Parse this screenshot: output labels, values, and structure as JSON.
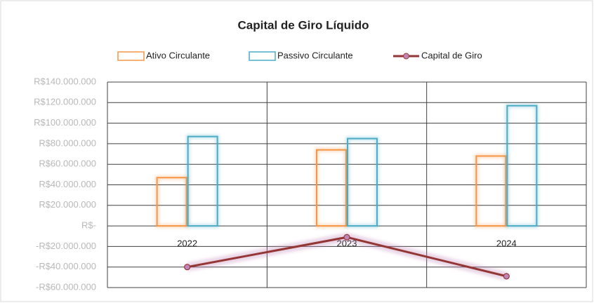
{
  "chart_data": {
    "type": "bar_line",
    "title": "Capital de Giro Líquido",
    "categories": [
      "2022",
      "2023",
      "2024"
    ],
    "series": [
      {
        "name": "Ativo Circulante",
        "type": "bar",
        "color": "#f79646",
        "values": [
          47000000,
          74000000,
          68000000
        ]
      },
      {
        "name": "Passivo Circulante",
        "type": "bar",
        "color": "#4bacc6",
        "values": [
          87000000,
          85000000,
          117000000
        ]
      },
      {
        "name": "Capital de Giro",
        "type": "line",
        "color": "#943634",
        "marker_color": "#c084b8",
        "values": [
          -40000000,
          -11000000,
          -49000000
        ]
      }
    ],
    "ylim": [
      -60000000,
      140000000
    ],
    "yticks": [
      {
        "value": -60000000,
        "label": "-R$60.000.000"
      },
      {
        "value": -40000000,
        "label": "-R$40.000.000"
      },
      {
        "value": -20000000,
        "label": "-R$20.000.000"
      },
      {
        "value": 0,
        "label": "R$-"
      },
      {
        "value": 20000000,
        "label": "R$20.000.000"
      },
      {
        "value": 40000000,
        "label": "R$40.000.000"
      },
      {
        "value": 60000000,
        "label": "R$60.000.000"
      },
      {
        "value": 80000000,
        "label": "R$80.000.000"
      },
      {
        "value": 100000000,
        "label": "R$100.000.000"
      },
      {
        "value": 120000000,
        "label": "R$120.000.000"
      },
      {
        "value": 140000000,
        "label": "R$140.000.000"
      }
    ],
    "grid": true,
    "legend": "top"
  }
}
